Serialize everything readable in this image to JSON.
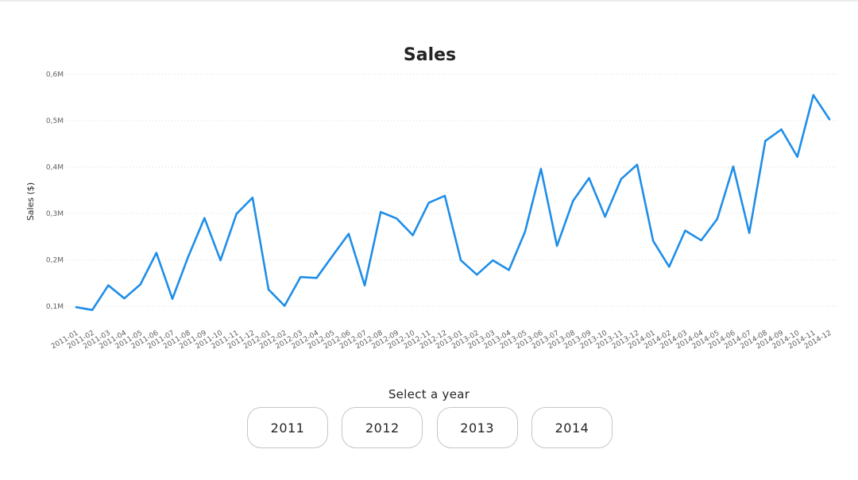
{
  "chart_data": {
    "type": "line",
    "title": "Sales",
    "xlabel": "",
    "ylabel": "Sales ($)",
    "ylim": [
      0.08,
      0.6
    ],
    "yticks": [
      {
        "value": 0.1,
        "label": "0,1M"
      },
      {
        "value": 0.2,
        "label": "0,2M"
      },
      {
        "value": 0.3,
        "label": "0,3M"
      },
      {
        "value": 0.4,
        "label": "0,4M"
      },
      {
        "value": 0.5,
        "label": "0,5M"
      },
      {
        "value": 0.6,
        "label": "0,6M"
      }
    ],
    "grid": true,
    "line_color": "#1f8ee8",
    "x": [
      "2011-01",
      "2011-02",
      "2011-03",
      "2011-04",
      "2011-05",
      "2011-06",
      "2011-07",
      "2011-08",
      "2011-09",
      "2011-10",
      "2011-11",
      "2011-12",
      "2012-01",
      "2012-02",
      "2012-03",
      "2012-04",
      "2012-05",
      "2012-06",
      "2012-07",
      "2012-08",
      "2012-09",
      "2012-10",
      "2012-11",
      "2012-12",
      "2013-01",
      "2013-02",
      "2013-03",
      "2013-04",
      "2013-05",
      "2013-06",
      "2013-07",
      "2013-08",
      "2013-09",
      "2013-10",
      "2013-11",
      "2013-12",
      "2014-01",
      "2014-02",
      "2014-03",
      "2014-04",
      "2014-05",
      "2014-06",
      "2014-07",
      "2014-08",
      "2014-09",
      "2014-10",
      "2014-11",
      "2014-12"
    ],
    "series": [
      {
        "name": "",
        "values": [
          0.098,
          0.092,
          0.145,
          0.117,
          0.147,
          0.215,
          0.116,
          0.208,
          0.29,
          0.199,
          0.299,
          0.334,
          0.136,
          0.101,
          0.163,
          0.161,
          0.209,
          0.256,
          0.145,
          0.303,
          0.289,
          0.253,
          0.323,
          0.338,
          0.199,
          0.168,
          0.199,
          0.178,
          0.26,
          0.396,
          0.23,
          0.327,
          0.376,
          0.293,
          0.374,
          0.405,
          0.241,
          0.185,
          0.263,
          0.242,
          0.288,
          0.401,
          0.258,
          0.456,
          0.481,
          0.422,
          0.555,
          0.503
        ]
      }
    ]
  },
  "slicer": {
    "title": "Select a year",
    "options": [
      "2011",
      "2012",
      "2013",
      "2014"
    ]
  }
}
